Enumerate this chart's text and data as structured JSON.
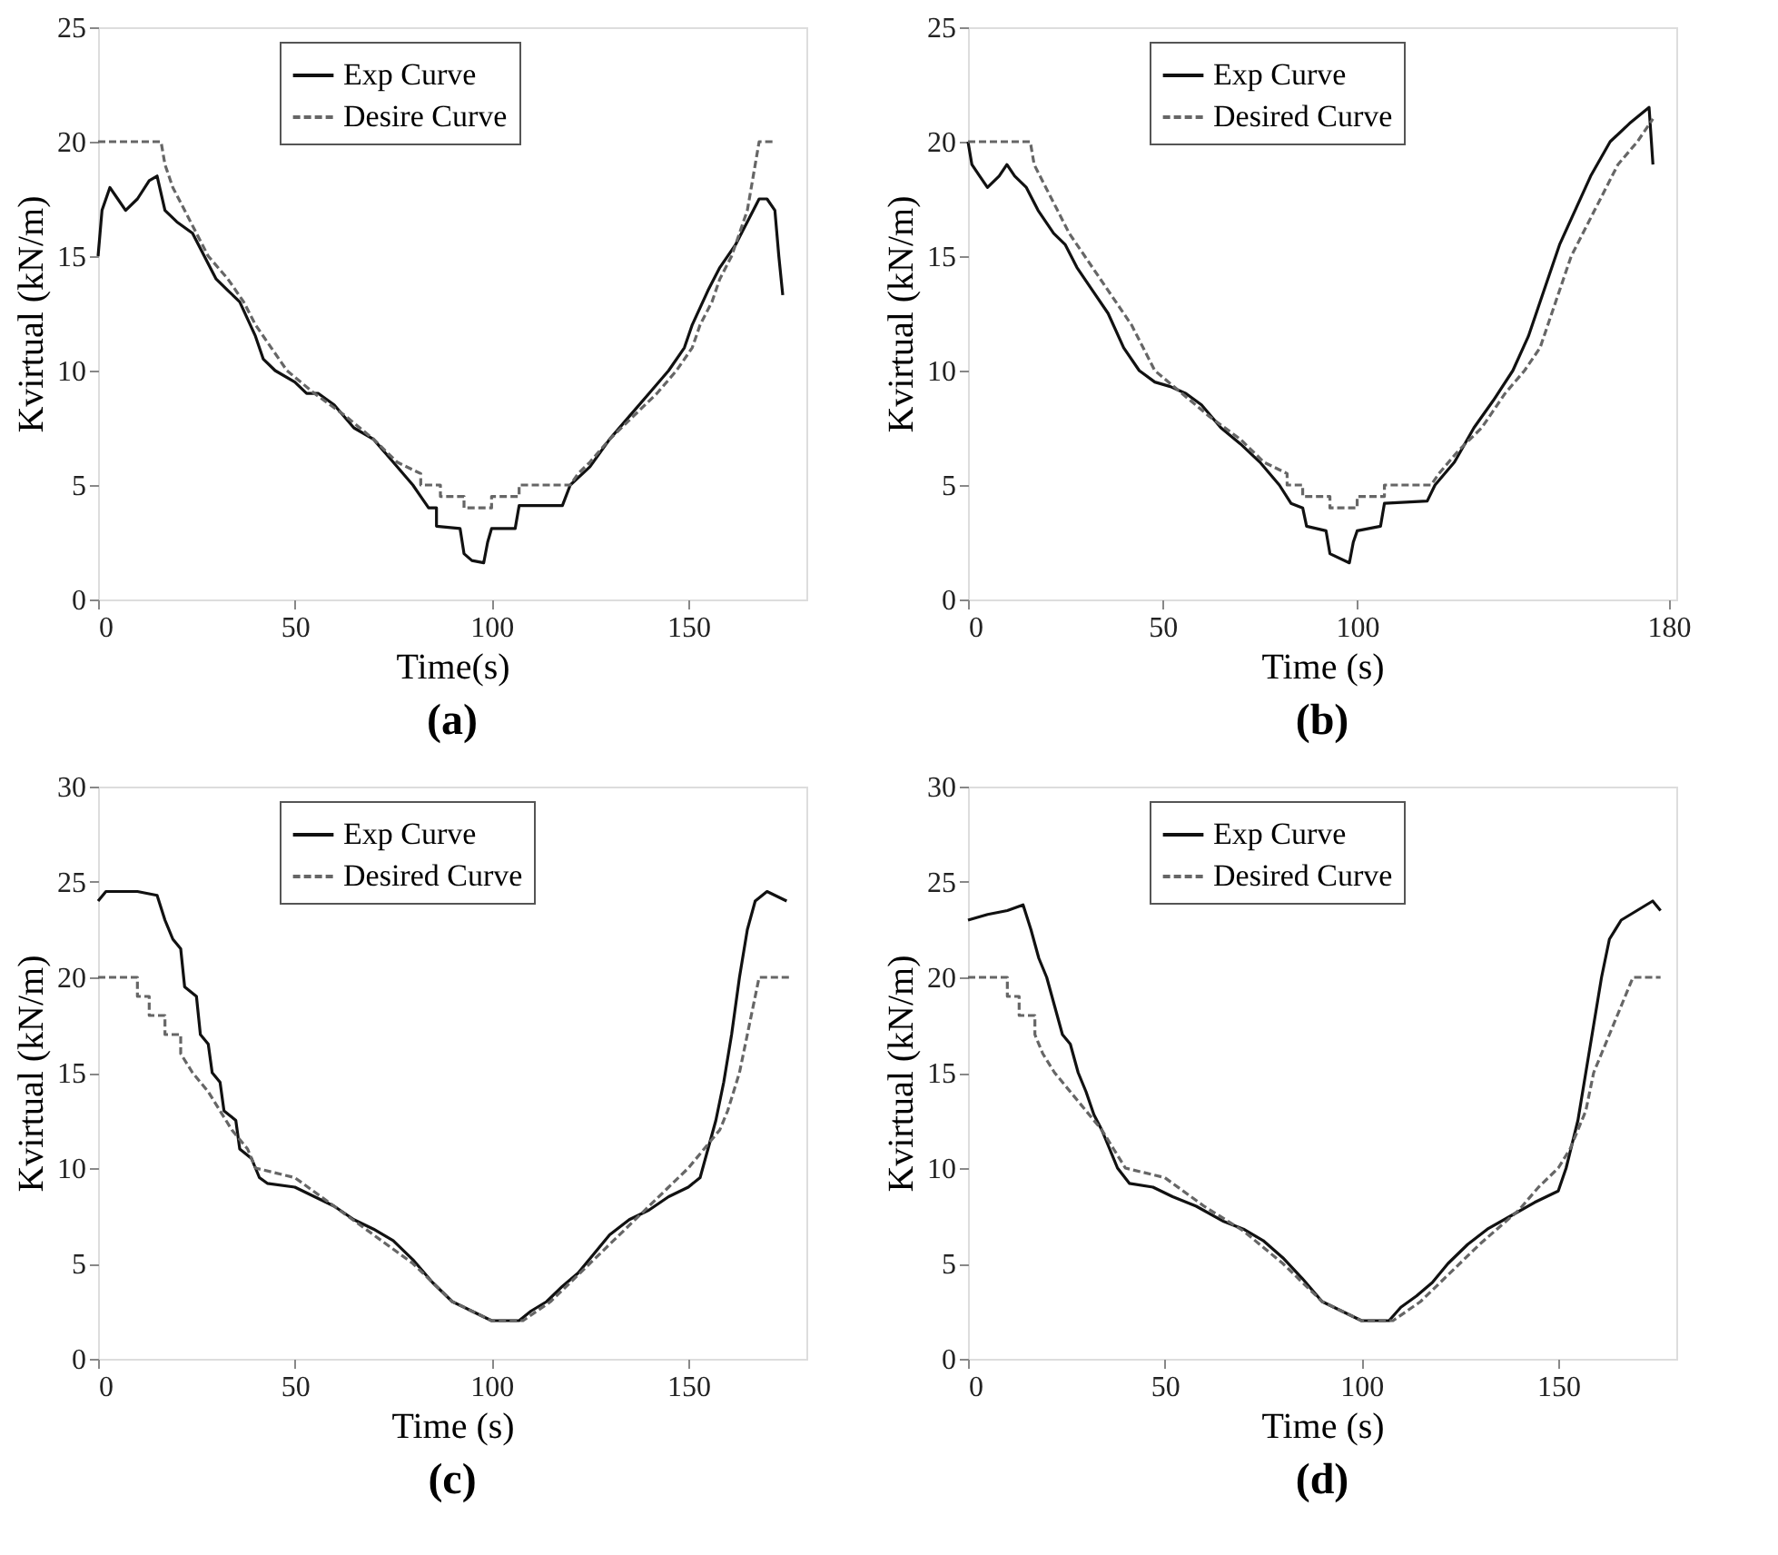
{
  "chart_data": [
    {
      "type": "line",
      "title": "(a)",
      "xlabel": "Time(s)",
      "ylabel": "Kvirtual (kN/m)",
      "xlim": [
        0,
        180
      ],
      "xticks": [
        0,
        50,
        100,
        150
      ],
      "ylim": [
        0,
        25
      ],
      "yticks": [
        0,
        5,
        10,
        15,
        20,
        25
      ],
      "legend": "top",
      "series": [
        {
          "name": "Exp Curve",
          "color": "#111111",
          "line_style": "solid",
          "x": [
            0,
            1,
            3,
            5,
            7,
            10,
            13,
            15,
            17,
            20,
            24,
            27,
            30,
            33,
            36,
            40,
            42,
            45,
            50,
            53,
            56,
            60,
            65,
            70,
            75,
            80,
            82,
            84,
            86,
            86,
            92,
            93,
            95,
            98,
            99,
            100,
            106,
            107,
            118,
            120,
            125,
            130,
            135,
            140,
            145,
            149,
            151,
            155,
            158,
            162,
            165,
            168,
            170,
            172,
            173,
            174
          ],
          "values": [
            15,
            17,
            18,
            17.5,
            17,
            17.5,
            18.3,
            18.5,
            17,
            16.5,
            16,
            15,
            14,
            13.5,
            13,
            11.5,
            10.5,
            10,
            9.5,
            9,
            9,
            8.5,
            7.5,
            7,
            6,
            5,
            4.5,
            4,
            4,
            3.2,
            3.1,
            2,
            1.7,
            1.6,
            2.5,
            3.1,
            3.1,
            4.1,
            4.1,
            5,
            5.8,
            7,
            8,
            9,
            10,
            11,
            12,
            13.5,
            14.5,
            15.5,
            16.5,
            17.5,
            17.5,
            17,
            15,
            13.3
          ]
        },
        {
          "name": "Desire Curve",
          "color": "#666666",
          "line_style": "dashed",
          "x": [
            0,
            16,
            17,
            19,
            22,
            25,
            28,
            33,
            37,
            40,
            44,
            48,
            55,
            63,
            70,
            76,
            82,
            82,
            87,
            87,
            93,
            93,
            100,
            100,
            107,
            107,
            120,
            122,
            125,
            130,
            136,
            142,
            147,
            151,
            153,
            156,
            158,
            161,
            163,
            165,
            166,
            167,
            168,
            172
          ],
          "values": [
            20,
            20,
            19,
            18,
            17,
            16,
            15,
            14,
            13,
            12,
            11,
            10,
            9,
            8,
            7,
            6,
            5.5,
            5,
            5,
            4.5,
            4.5,
            4,
            4,
            4.5,
            4.5,
            5,
            5,
            5.5,
            6,
            7,
            8,
            9,
            10,
            11,
            12,
            13,
            14,
            15,
            16,
            17,
            18,
            19,
            20,
            20
          ]
        }
      ]
    },
    {
      "type": "line",
      "title": "(b)",
      "xlabel": "Time (s)",
      "ylabel": "Kvirtual (kN/m)",
      "xlim": [
        0,
        182
      ],
      "xticks": [
        0,
        50,
        100,
        180
      ],
      "ylim": [
        0,
        25
      ],
      "yticks": [
        0,
        5,
        10,
        15,
        20,
        25
      ],
      "legend": "top",
      "series": [
        {
          "name": "Exp Curve",
          "color": "#111111",
          "line_style": "solid",
          "x": [
            0,
            1,
            3,
            5,
            8,
            10,
            12,
            15,
            18,
            22,
            25,
            28,
            32,
            36,
            40,
            44,
            48,
            52,
            56,
            60,
            65,
            70,
            75,
            80,
            83,
            86,
            87,
            92,
            93,
            98,
            99,
            100,
            106,
            107,
            118,
            120,
            125,
            130,
            135,
            140,
            144,
            148,
            152,
            156,
            160,
            165,
            170,
            175,
            176
          ],
          "values": [
            20,
            19,
            18.5,
            18,
            18.5,
            19,
            18.5,
            18,
            17,
            16,
            15.5,
            14.5,
            13.5,
            12.5,
            11,
            10,
            9.5,
            9.3,
            9,
            8.5,
            7.5,
            6.8,
            6,
            5,
            4.2,
            4,
            3.2,
            3,
            2,
            1.6,
            2.5,
            3,
            3.2,
            4.2,
            4.3,
            5,
            6,
            7.5,
            8.7,
            10,
            11.5,
            13.5,
            15.5,
            17,
            18.5,
            20,
            20.8,
            21.5,
            19
          ]
        },
        {
          "name": "Desired Curve",
          "color": "#666666",
          "line_style": "dashed",
          "x": [
            0,
            16,
            17,
            20,
            23,
            26,
            30,
            34,
            38,
            42,
            45,
            48,
            55,
            62,
            70,
            76,
            82,
            82,
            86,
            86,
            93,
            93,
            100,
            100,
            107,
            107,
            119,
            121,
            126,
            132,
            138,
            143,
            147,
            150,
            153,
            155,
            158,
            161,
            164,
            167,
            172,
            176
          ],
          "values": [
            20,
            20,
            19,
            18,
            17,
            16,
            15,
            14,
            13,
            12,
            11,
            10,
            9,
            8,
            7,
            6,
            5.5,
            5,
            5,
            4.5,
            4.5,
            4,
            4,
            4.5,
            4.5,
            5,
            5,
            5.5,
            6.5,
            7.5,
            9,
            10,
            11,
            12.5,
            14,
            15,
            16,
            17,
            18,
            19,
            20,
            21
          ]
        }
      ]
    },
    {
      "type": "line",
      "title": "(c)",
      "xlabel": "Time (s)",
      "ylabel": "Kvirtual (kN/m)",
      "xlim": [
        0,
        180
      ],
      "xticks": [
        0,
        50,
        100,
        150
      ],
      "ylim": [
        0,
        30
      ],
      "yticks": [
        0,
        5,
        10,
        15,
        20,
        25,
        30
      ],
      "legend": "top",
      "series": [
        {
          "name": "Exp Curve",
          "color": "#111111",
          "line_style": "solid",
          "x": [
            0,
            2,
            10,
            15,
            17,
            19,
            21,
            22,
            25,
            26,
            28,
            29,
            31,
            32,
            35,
            36,
            39,
            41,
            43,
            50,
            55,
            60,
            65,
            70,
            75,
            80,
            85,
            90,
            95,
            100,
            107,
            110,
            114,
            118,
            122,
            126,
            130,
            135,
            140,
            145,
            150,
            153,
            155,
            157,
            159,
            161,
            163,
            165,
            167,
            170,
            175
          ],
          "values": [
            24,
            24.5,
            24.5,
            24.3,
            23,
            22,
            21.5,
            19.5,
            19,
            17,
            16.5,
            15,
            14.5,
            13,
            12.5,
            11,
            10.5,
            9.5,
            9.2,
            9,
            8.5,
            8,
            7.3,
            6.8,
            6.2,
            5.2,
            4,
            3,
            2.5,
            2,
            2,
            2.5,
            3,
            3.8,
            4.5,
            5.5,
            6.5,
            7.3,
            7.8,
            8.5,
            9,
            9.5,
            11,
            12.5,
            14.5,
            17,
            20,
            22.5,
            24,
            24.5,
            24
          ]
        },
        {
          "name": "Desired Curve",
          "color": "#666666",
          "line_style": "dashed",
          "x": [
            0,
            10,
            10,
            13,
            13,
            17,
            17,
            21,
            21,
            24,
            28,
            31,
            34,
            38,
            40,
            50,
            60,
            70,
            80,
            90,
            100,
            108,
            115,
            120,
            130,
            140,
            145,
            150,
            154,
            158,
            160,
            163,
            165,
            167,
            168,
            176
          ],
          "values": [
            20,
            20,
            19,
            19,
            18,
            18,
            17,
            17,
            16,
            15,
            14,
            13,
            12,
            11,
            10,
            9.5,
            8,
            6.5,
            5,
            3,
            2,
            2,
            3,
            4,
            6,
            8,
            9,
            10,
            11,
            12,
            13,
            15,
            17,
            19,
            20,
            20
          ]
        }
      ]
    },
    {
      "type": "line",
      "title": "(d)",
      "xlabel": "Time (s)",
      "ylabel": "Kvirtual (kN/m)",
      "xlim": [
        0,
        180
      ],
      "xticks": [
        0,
        50,
        100,
        150
      ],
      "ylim": [
        0,
        30
      ],
      "yticks": [
        0,
        5,
        10,
        15,
        20,
        25,
        30
      ],
      "legend": "top",
      "series": [
        {
          "name": "Exp Curve",
          "color": "#111111",
          "line_style": "solid",
          "x": [
            0,
            5,
            10,
            14,
            16,
            18,
            20,
            22,
            24,
            26,
            28,
            30,
            32,
            34,
            36,
            38,
            41,
            47,
            52,
            58,
            65,
            70,
            75,
            80,
            85,
            90,
            95,
            100,
            107,
            110,
            114,
            118,
            122,
            127,
            132,
            138,
            144,
            150,
            152,
            155,
            157,
            159,
            161,
            163,
            166,
            170,
            174,
            176
          ],
          "values": [
            23,
            23.3,
            23.5,
            23.8,
            22.5,
            21,
            20,
            18.5,
            17,
            16.5,
            15,
            14,
            12.8,
            12,
            11,
            10,
            9.2,
            9,
            8.5,
            8,
            7.2,
            6.8,
            6.2,
            5.3,
            4.2,
            3,
            2.5,
            2,
            2,
            2.7,
            3.3,
            4,
            5,
            6,
            6.8,
            7.5,
            8.2,
            8.8,
            10,
            12.5,
            15,
            17.5,
            20,
            22,
            23,
            23.5,
            24,
            23.5
          ]
        },
        {
          "name": "Desired Curve",
          "color": "#666666",
          "line_style": "dashed",
          "x": [
            0,
            10,
            10,
            13,
            13,
            17,
            17,
            19,
            22,
            26,
            30,
            34,
            37,
            40,
            50,
            60,
            70,
            80,
            90,
            100,
            108,
            115,
            120,
            130,
            140,
            145,
            150,
            153,
            155,
            157,
            159,
            161,
            163,
            165,
            167,
            169,
            176
          ],
          "values": [
            20,
            20,
            19,
            19,
            18,
            18,
            17,
            16,
            15,
            14,
            13,
            12,
            11,
            10,
            9.5,
            8,
            6.7,
            5,
            3,
            2,
            2,
            3,
            4,
            6,
            7.8,
            9,
            10,
            11,
            12,
            13,
            15,
            16,
            17,
            18,
            19,
            20,
            20
          ]
        }
      ]
    }
  ]
}
